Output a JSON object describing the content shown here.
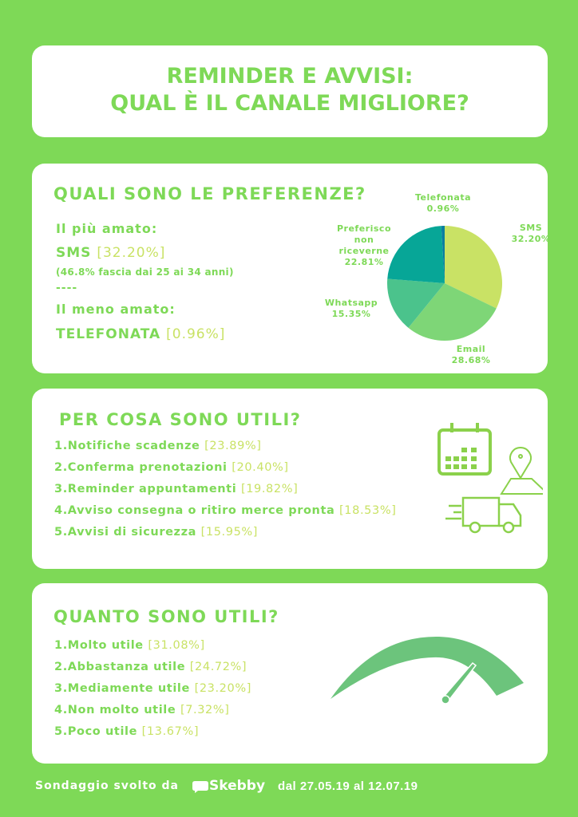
{
  "title": {
    "line1": "REMINDER E AVVISI:",
    "line2": "QUAL È IL CANALE MIGLIORE?"
  },
  "preferences": {
    "heading": "QUALI SONO LE PREFERENZE?",
    "most_loved_label": "Il più amato:",
    "most_loved_name": "SMS",
    "most_loved_value": "[32.20%]",
    "most_loved_note": "(46.8% fascia dai 25 ai 34 anni)",
    "separator": "----",
    "least_loved_label": "Il meno amato:",
    "least_loved_name": "TELEFONATA",
    "least_loved_value": "[0.96%]"
  },
  "chart_data": {
    "type": "pie",
    "slices": [
      {
        "label": "SMS",
        "value": 32.2,
        "display": "32.20%",
        "color": "#c9e265"
      },
      {
        "label": "Email",
        "value": 28.68,
        "display": "28.68%",
        "color": "#7ed677"
      },
      {
        "label": "Whatsapp",
        "value": 15.35,
        "display": "15.35%",
        "color": "#4bc38c"
      },
      {
        "label": "Preferisco non riceverne",
        "value": 22.81,
        "display": "22.81%",
        "color": "#07a697"
      },
      {
        "label": "Telefonata",
        "value": 0.96,
        "display": "0.96%",
        "color": "#0b7ea0"
      }
    ]
  },
  "uses": {
    "heading": "PER COSA SONO UTILI?",
    "items": [
      {
        "label": "1.Notifiche scadenze ",
        "value": "[23.89%]"
      },
      {
        "label": "2.Conferma prenotazioni ",
        "value": "[20.40%]"
      },
      {
        "label": "3.Reminder appuntamenti ",
        "value": "[19.82%]"
      },
      {
        "label": "4.Avviso consegna o ritiro merce pronta ",
        "value": "[18.53%]"
      },
      {
        "label": "5.Avvisi di sicurezza ",
        "value": "[15.95%]"
      }
    ],
    "icons": [
      "calendar-icon",
      "map-pin-icon",
      "delivery-truck-icon"
    ]
  },
  "usefulness": {
    "heading": "QUANTO SONO UTILI?",
    "items": [
      {
        "label": "1.Molto utile ",
        "value": "[31.08%]"
      },
      {
        "label": "2.Abbastanza utile ",
        "value": "[24.72%]"
      },
      {
        "label": "3.Mediamente utile ",
        "value": "[23.20%]"
      },
      {
        "label": "4.Non molto utile ",
        "value": "[7.32%]"
      },
      {
        "label": "5.Poco utile ",
        "value": "[13.67%]"
      }
    ],
    "icon": "gauge-icon"
  },
  "footer": {
    "prefix": "Sondaggio svolto da",
    "brand": "Skebby",
    "dates": "dal 27.05.19 al 12.07.19"
  },
  "colors": {
    "background": "#7ed957",
    "accent": "#c9e265",
    "gauge": "#6cc47c"
  }
}
